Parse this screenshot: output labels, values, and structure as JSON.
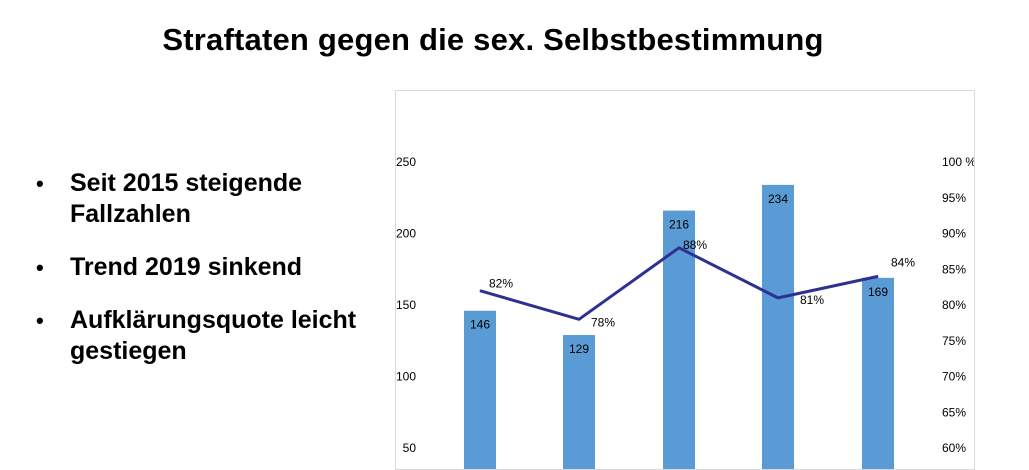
{
  "title": "Straftaten gegen die sex. Selbstbestimmung",
  "bullets": [
    "Seit 2015 steigende Fallzahlen",
    "Trend 2019 sinkend",
    "Aufklärungsquote leicht gestiegen"
  ],
  "colors": {
    "bar": "#5b9bd5",
    "line": "#2e3192",
    "grid": "#d9d9d9"
  },
  "chart_data": {
    "type": "bar",
    "title": "",
    "categories": [
      "",
      "",
      "",
      "",
      ""
    ],
    "series": [
      {
        "type": "bar",
        "axis": "left",
        "values": [
          146,
          129,
          216,
          234,
          169
        ],
        "labels": [
          "146",
          "129",
          "216",
          "234",
          "169"
        ]
      },
      {
        "type": "line",
        "axis": "right",
        "values": [
          82,
          78,
          88,
          81,
          84
        ],
        "labels": [
          "82%",
          "78%",
          "88%",
          "81%",
          "84%"
        ]
      }
    ],
    "y_left": {
      "ticks": [
        50,
        100,
        150,
        200,
        250
      ],
      "tick_labels": [
        "50",
        "100",
        "150",
        "200",
        "250"
      ]
    },
    "y_right": {
      "ticks": [
        60,
        65,
        70,
        75,
        80,
        85,
        90,
        95,
        100
      ],
      "tick_labels": [
        "60%",
        "65%",
        "70%",
        "75%",
        "80%",
        "85%",
        "90%",
        "95%",
        "100 %"
      ]
    },
    "grid": false,
    "legend": "none"
  }
}
